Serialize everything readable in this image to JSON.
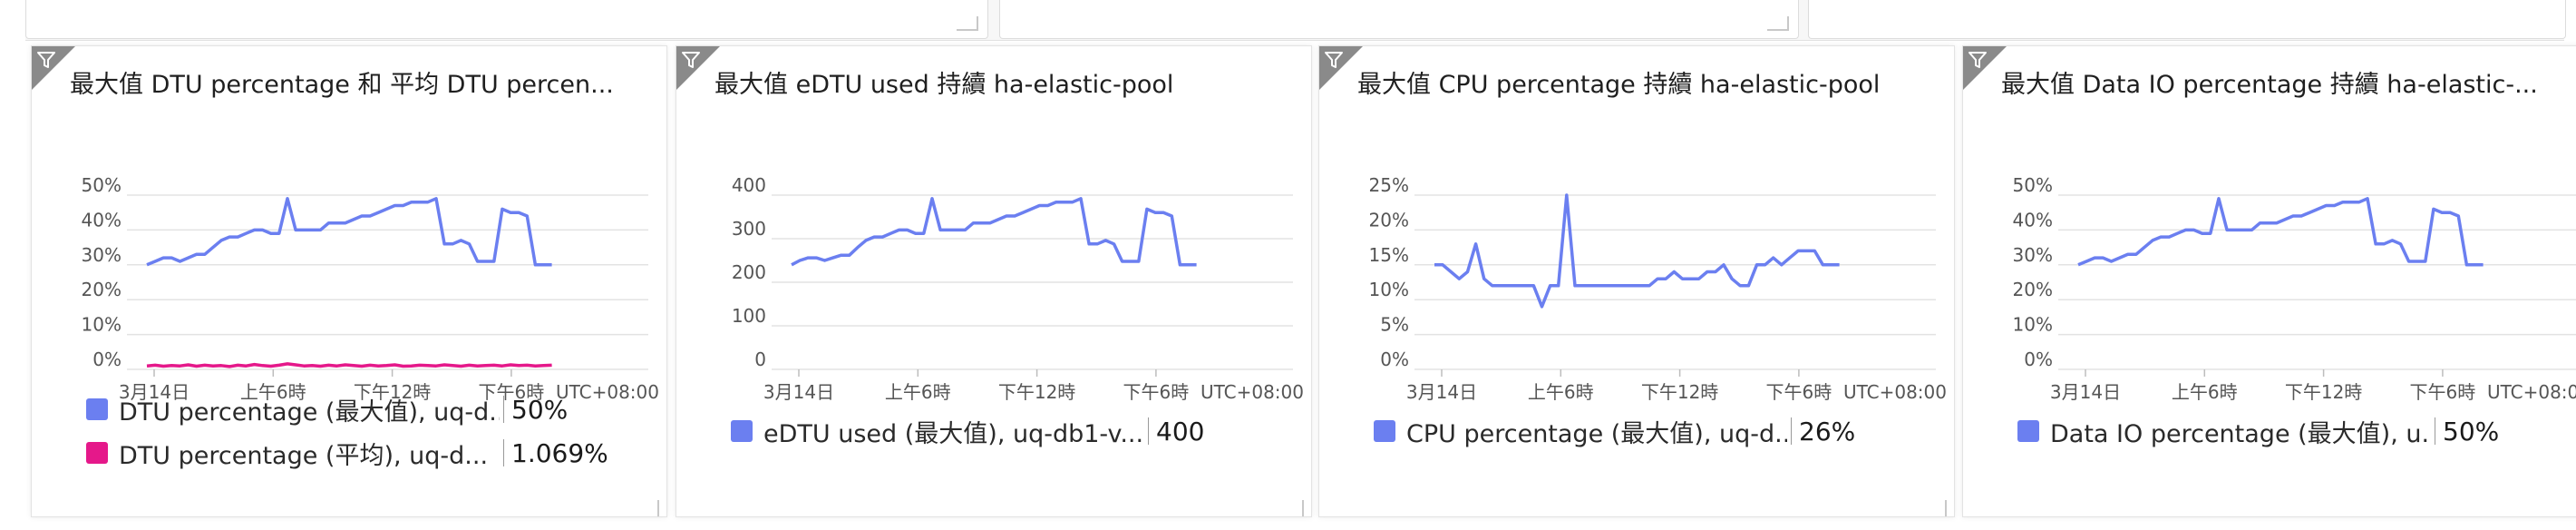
{
  "chart_data": [
    {
      "type": "line",
      "title": "最大值 DTU percentage 和 平均 DTU percen...",
      "yticks": [
        "50%",
        "40%",
        "30%",
        "20%",
        "10%",
        "0%"
      ],
      "ylim": [
        0,
        50
      ],
      "xticks": [
        "3月14日",
        "上午6時",
        "下午12時",
        "下午6時"
      ],
      "timezone": "UTC+08:00",
      "series": [
        {
          "name": "DTU percentage (最大值), uq-d...",
          "value_label": "50%",
          "color": "#6b7ff0",
          "values": [
            30,
            31,
            32,
            32,
            31,
            32,
            33,
            33,
            35,
            37,
            38,
            38,
            39,
            40,
            40,
            39,
            39,
            49,
            40,
            40,
            40,
            40,
            42,
            42,
            42,
            43,
            44,
            44,
            45,
            46,
            47,
            47,
            48,
            48,
            48,
            49,
            36,
            36,
            37,
            36,
            31,
            31,
            31,
            46,
            45,
            45,
            44,
            30,
            30,
            30
          ]
        },
        {
          "name": "DTU percentage (平均), uq-d...",
          "value_label": "1.069%",
          "color": "#e5188a",
          "values": [
            1.0,
            1.2,
            0.9,
            1.1,
            1.0,
            1.3,
            0.9,
            1.2,
            1.0,
            1.1,
            0.8,
            1.2,
            1.0,
            1.4,
            1.1,
            0.9,
            1.2,
            1.6,
            1.3,
            1.0,
            1.1,
            0.9,
            1.2,
            1.0,
            1.3,
            1.1,
            0.9,
            1.2,
            1.0,
            1.1,
            1.3,
            0.9,
            1.0,
            1.2,
            1.1,
            1.0,
            1.3,
            1.1,
            0.9,
            1.2,
            1.0,
            1.1,
            1.2,
            1.0,
            1.3,
            1.1,
            1.2,
            1.0,
            1.1,
            1.2
          ]
        }
      ]
    },
    {
      "type": "line",
      "title": "最大值 eDTU used 持續 ha-elastic-pool",
      "yticks": [
        "400",
        "300",
        "200",
        "100",
        "0"
      ],
      "ylim": [
        0,
        400
      ],
      "xticks": [
        "3月14日",
        "上午6時",
        "下午12時",
        "下午6時"
      ],
      "timezone": "UTC+08:00",
      "series": [
        {
          "name": "eDTU used (最大值), uq-db1-v...",
          "value_label": "400",
          "color": "#6b7ff0",
          "values": [
            240,
            250,
            256,
            256,
            250,
            256,
            262,
            262,
            280,
            296,
            304,
            304,
            312,
            320,
            320,
            312,
            312,
            392,
            320,
            320,
            320,
            320,
            336,
            336,
            336,
            344,
            352,
            352,
            360,
            368,
            376,
            376,
            384,
            384,
            384,
            392,
            288,
            288,
            296,
            288,
            248,
            248,
            248,
            368,
            360,
            360,
            352,
            240,
            240,
            240
          ]
        }
      ]
    },
    {
      "type": "line",
      "title": "最大值 CPU percentage 持續 ha-elastic-pool",
      "yticks": [
        "25%",
        "20%",
        "15%",
        "10%",
        "5%",
        "0%"
      ],
      "ylim": [
        0,
        25
      ],
      "xticks": [
        "3月14日",
        "上午6時",
        "下午12時",
        "下午6時"
      ],
      "timezone": "UTC+08:00",
      "series": [
        {
          "name": "CPU percentage (最大值), uq-d...",
          "value_label": "26%",
          "color": "#6b7ff0",
          "values": [
            15,
            15,
            14,
            13,
            14,
            18,
            13,
            12,
            12,
            12,
            12,
            12,
            12,
            9,
            12,
            12,
            25,
            12,
            12,
            12,
            12,
            12,
            12,
            12,
            12,
            12,
            12,
            13,
            13,
            14,
            13,
            13,
            13,
            14,
            14,
            15,
            13,
            12,
            12,
            15,
            15,
            16,
            15,
            16,
            17,
            17,
            17,
            15,
            15,
            15
          ]
        }
      ]
    },
    {
      "type": "line",
      "title": "最大值 Data IO percentage 持續 ha-elastic-...",
      "yticks": [
        "50%",
        "40%",
        "30%",
        "20%",
        "10%",
        "0%"
      ],
      "ylim": [
        0,
        50
      ],
      "xticks": [
        "3月14日",
        "上午6時",
        "下午12時",
        "下午6時"
      ],
      "timezone": "UTC+08:00",
      "series": [
        {
          "name": "Data IO percentage (最大值), u...",
          "value_label": "50%",
          "color": "#6b7ff0",
          "values": [
            30,
            31,
            32,
            32,
            31,
            32,
            33,
            33,
            35,
            37,
            38,
            38,
            39,
            40,
            40,
            39,
            39,
            49,
            40,
            40,
            40,
            40,
            42,
            42,
            42,
            43,
            44,
            44,
            45,
            46,
            47,
            47,
            48,
            48,
            48,
            49,
            36,
            36,
            37,
            36,
            31,
            31,
            31,
            46,
            45,
            45,
            44,
            30,
            30,
            30
          ]
        }
      ]
    }
  ]
}
